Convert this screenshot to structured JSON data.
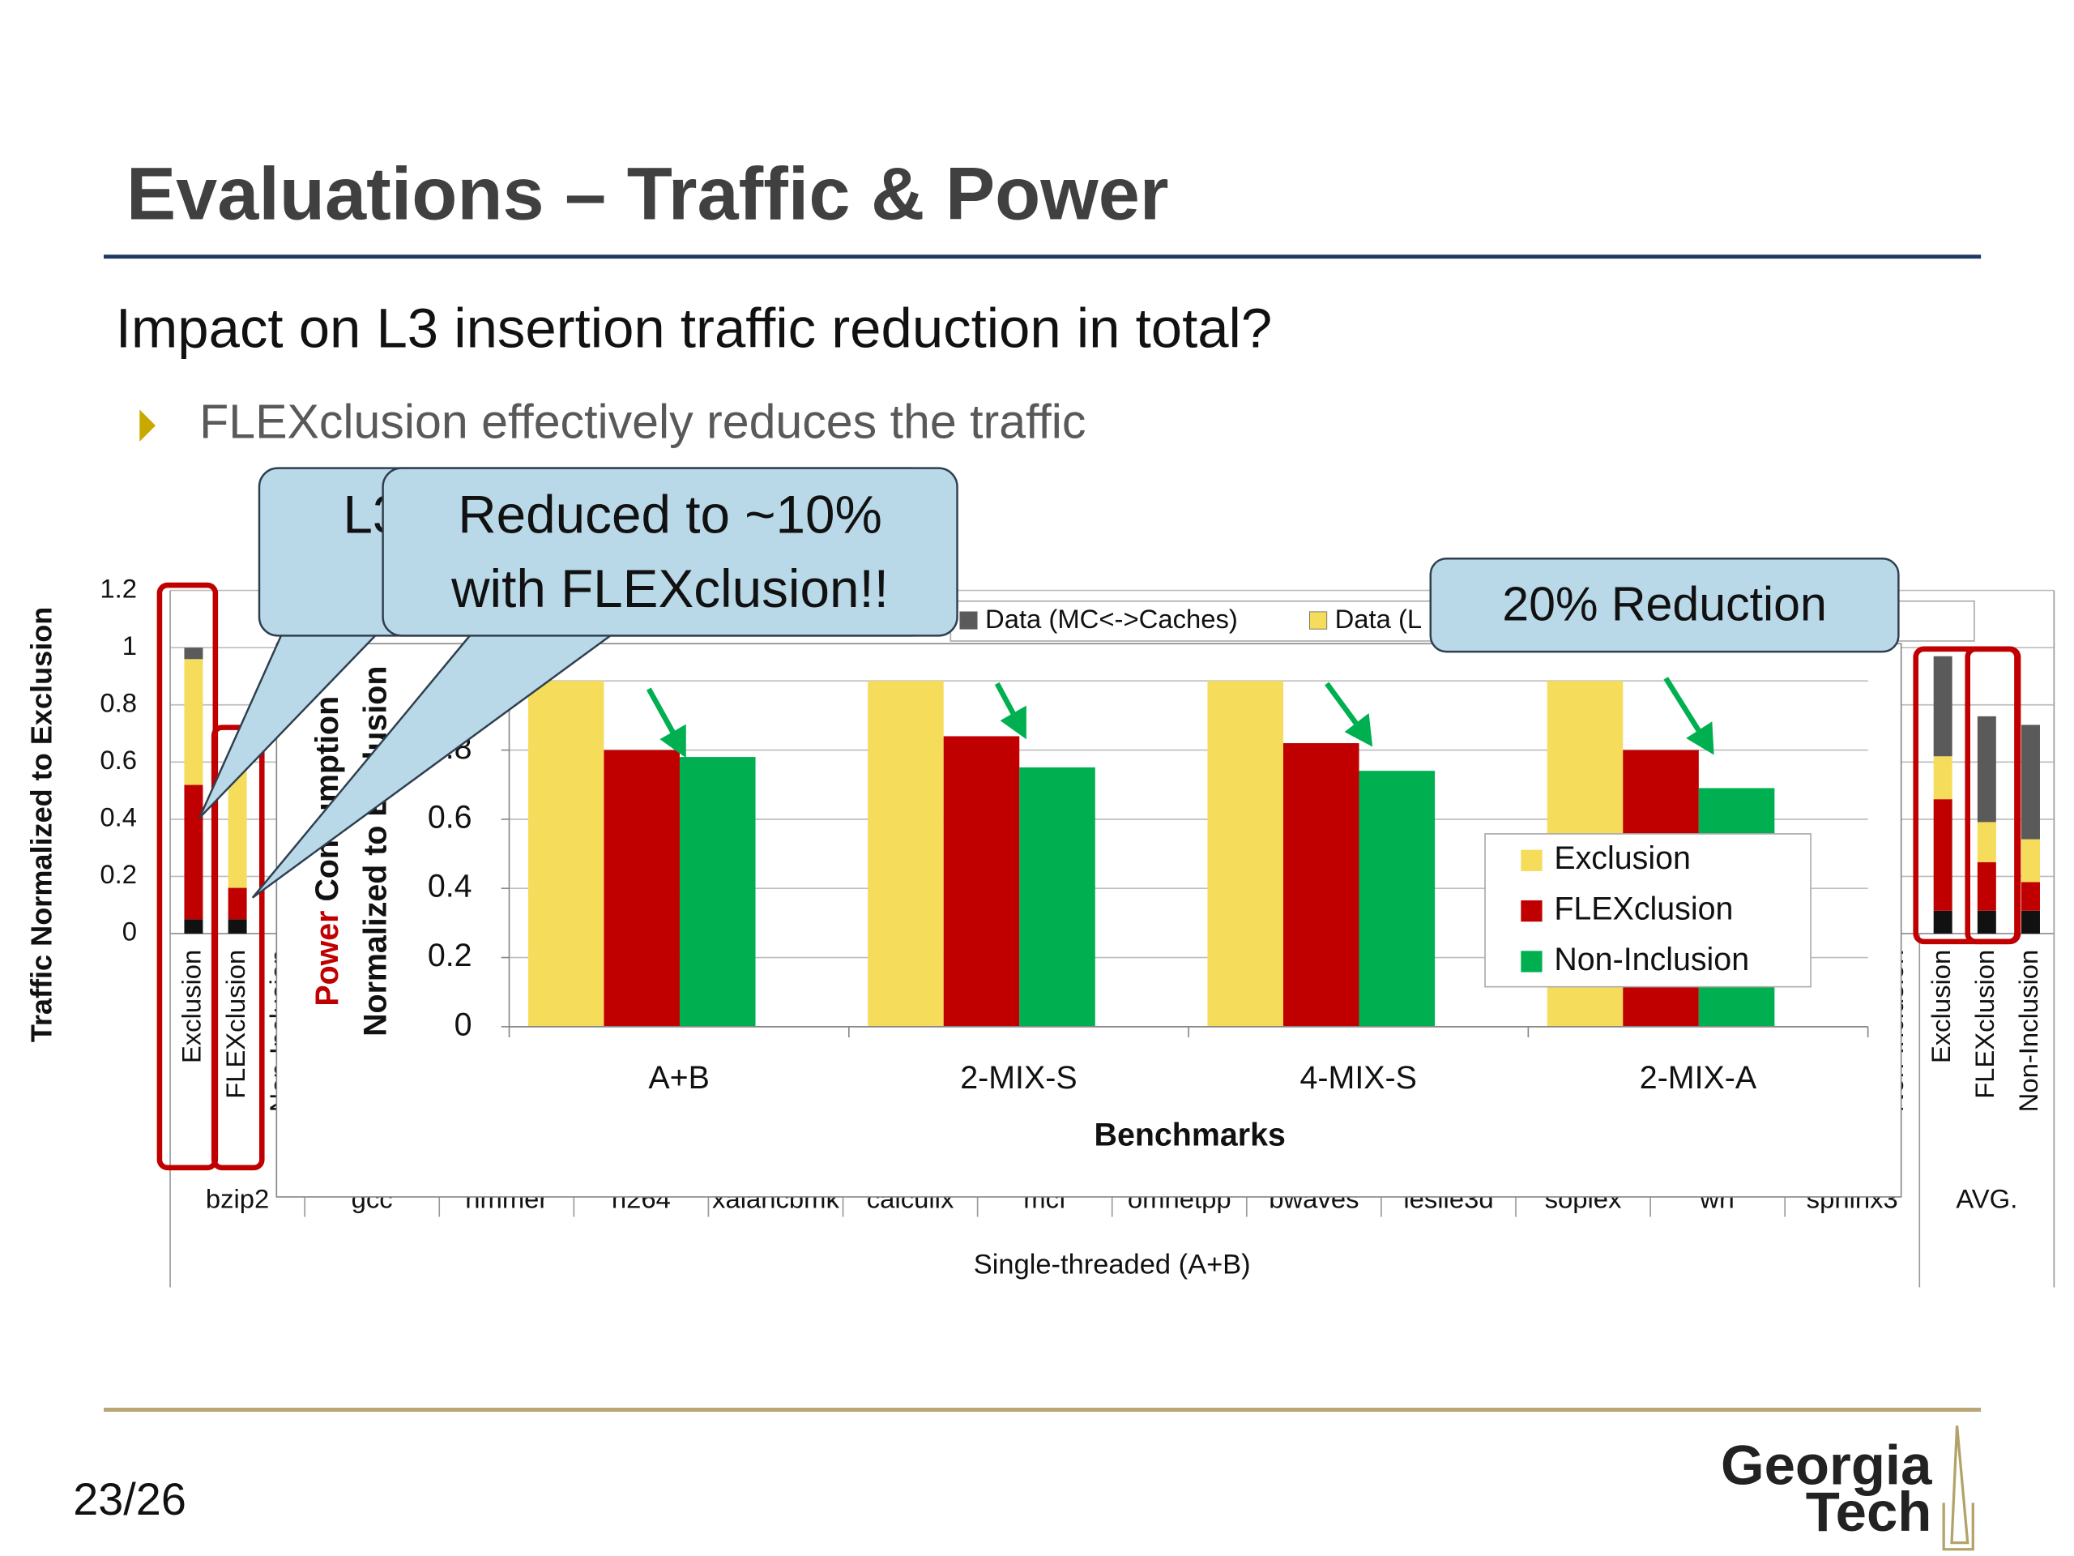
{
  "slide": {
    "title": "Evaluations – Traffic & Power",
    "heading": "Impact on L3 insertion traffic reduction in total?",
    "bullet": "FLEXclusion effectively reduces the traffic",
    "callouts": [
      {
        "lines": [
          "L3"
        ]
      },
      {
        "lines": [
          "Reduced to ~10%",
          "with FLEXclusion!!"
        ]
      },
      {
        "lines": [
          "20% Reduction"
        ]
      }
    ],
    "page_number": "23/26",
    "logo": [
      "Georgia",
      "Tech"
    ]
  },
  "chart_data": [
    {
      "type": "stacked-bar",
      "ylabel": "Traffic Normalized to Exclusion",
      "xlabel": "Single-threaded (A+B)",
      "categories": [
        "bzip2",
        "gcc",
        "hmmer",
        "h264",
        "xalancbmk",
        "calculix",
        "mcf",
        "omnetpp",
        "bwaves",
        "leslie3d",
        "soplex",
        "wrf",
        "sphinx3",
        "AVG."
      ],
      "bar_labels": [
        "Exclusion",
        "FLEXclusion",
        "Non-Inclusion"
      ],
      "series": [
        {
          "color": "#111111",
          "values": [
            [
              0.05,
              0.05,
              null
            ],
            null,
            null,
            null,
            null,
            null,
            null,
            null,
            null,
            null,
            null,
            null,
            null,
            [
              0.08,
              0.08,
              0.08
            ]
          ]
        },
        {
          "color": "#c00000",
          "values": [
            [
              0.47,
              0.11,
              null
            ],
            null,
            null,
            null,
            null,
            null,
            null,
            null,
            null,
            null,
            null,
            null,
            null,
            [
              0.39,
              0.17,
              0.1
            ]
          ]
        },
        {
          "name": "Data (L",
          "color": "#f5dc5a",
          "values": [
            [
              0.44,
              0.42,
              null
            ],
            null,
            null,
            null,
            null,
            null,
            null,
            null,
            null,
            null,
            null,
            null,
            null,
            [
              0.15,
              0.14,
              0.15
            ]
          ]
        },
        {
          "name": "Data (MC<->Caches)",
          "color": "#5a5a5a",
          "values": [
            [
              0.04,
              0.05,
              null
            ],
            null,
            null,
            null,
            null,
            null,
            null,
            null,
            null,
            null,
            null,
            null,
            null,
            [
              0.35,
              0.37,
              0.4
            ]
          ]
        }
      ],
      "ylim": [
        0,
        1.2
      ],
      "yticks": [
        0,
        0.2,
        0.4,
        0.6,
        0.8,
        1,
        1.2
      ],
      "grid": true
    },
    {
      "type": "bar",
      "ylabel": [
        "Power",
        "Consumption",
        "Normalized to Exclusion"
      ],
      "xlabel": "Benchmarks",
      "categories": [
        "A+B",
        "2-MIX-S",
        "4-MIX-S",
        "2-MIX-A"
      ],
      "series": [
        {
          "name": "Exclusion",
          "color": "#f5dc5a",
          "values": [
            1,
            1,
            1,
            1
          ]
        },
        {
          "name": "FLEXclusion",
          "color": "#c00000",
          "values": [
            0.8,
            0.84,
            0.82,
            0.8
          ]
        },
        {
          "name": "Non-Inclusion",
          "color": "#00b050",
          "values": [
            0.78,
            0.75,
            0.74,
            0.69
          ]
        }
      ],
      "ylim": [
        0,
        1.1
      ],
      "yticks": [
        0,
        0.2,
        0.4,
        0.6,
        0.8,
        1
      ],
      "grid": true,
      "legend": "right"
    }
  ]
}
